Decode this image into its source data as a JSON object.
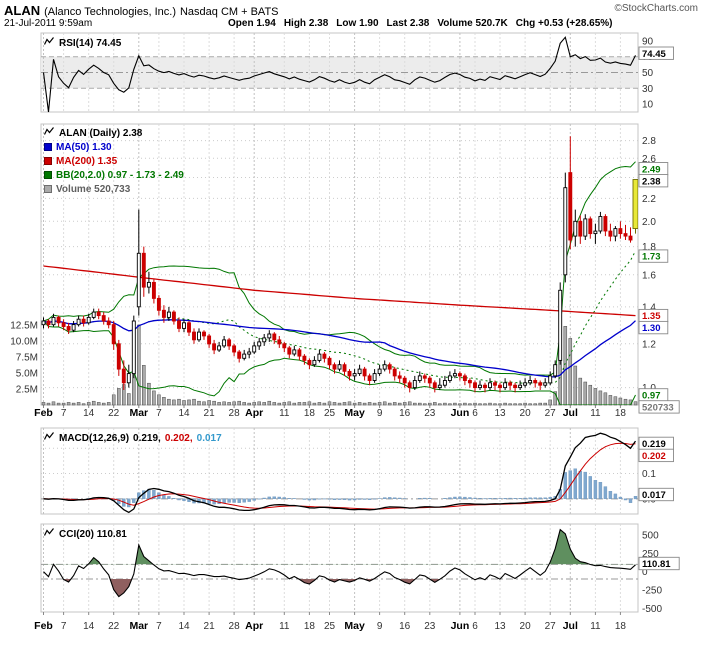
{
  "header": {
    "symbol": "ALAN",
    "name": "(Alanco Technologies, Inc.)",
    "exchange": "Nasdaq CM + BATS",
    "credit": "©StockCharts.com",
    "datetime": "21-Jul-2011 9:59am",
    "quote": {
      "open_l": "Open",
      "open_v": "1.94",
      "high_l": "High",
      "high_v": "2.38",
      "low_l": "Low",
      "low_v": "1.90",
      "last_l": "Last",
      "last_v": "2.38",
      "vol_l": "Volume",
      "vol_v": "520.7K",
      "chg_l": "Chg",
      "chg_v": "+0.53 (+28.65%)"
    }
  },
  "legends": {
    "rsi": {
      "text": "RSI(14) 74.45"
    },
    "price": {
      "title": "ALAN (Daily) 2.38",
      "ma50": "MA(50) 1.30",
      "ma200": "MA(200) 1.35",
      "bb": "BB(20,2.0) 0.97 - 1.73 - 2.49",
      "volume": "Volume 520,733"
    },
    "macd": {
      "title": "MACD(12,26,9)",
      "v1": "0.219,",
      "v2": "0.202,",
      "v3": "0.017"
    },
    "cci": {
      "text": "CCI(20) 110.81"
    }
  },
  "colors": {
    "text": "#000000",
    "up": "#000000",
    "down": "#cc0000",
    "ma50": "#0000cc",
    "ma200": "#cc0000",
    "bb": "#007700",
    "volume_text": "#606060",
    "volume_bar": "#aaaaaa",
    "hist": "#7fa8cf",
    "macd_line": "#000000",
    "signal": "#cc0000",
    "hist_text": "#3399cc",
    "cci_up_fill": "#5f8f5f",
    "cci_dn_fill": "#8f5f5f",
    "highlight": "#e8e838",
    "badge_green": "#007700",
    "badge_red": "#cc0000",
    "badge_blue": "#0000cc",
    "badge_black": "#000000",
    "badge_gray": "#777777",
    "grid": "#cccccc"
  },
  "chart_data": {
    "type": "candlestick",
    "title": "ALAN (Daily)",
    "timeframe": "Feb 2011 - 21 Jul 2011",
    "dates": [
      "2/1",
      "2/2",
      "2/3",
      "2/4",
      "2/7",
      "2/8",
      "2/9",
      "2/10",
      "2/11",
      "2/14",
      "2/15",
      "2/16",
      "2/17",
      "2/18",
      "2/22",
      "2/23",
      "2/24",
      "2/25",
      "2/28",
      "3/1",
      "3/2",
      "3/3",
      "3/4",
      "3/7",
      "3/8",
      "3/9",
      "3/10",
      "3/11",
      "3/14",
      "3/15",
      "3/16",
      "3/17",
      "3/18",
      "3/21",
      "3/22",
      "3/23",
      "3/24",
      "3/25",
      "3/28",
      "3/29",
      "3/30",
      "3/31",
      "4/1",
      "4/4",
      "4/5",
      "4/6",
      "4/7",
      "4/8",
      "4/11",
      "4/12",
      "4/13",
      "4/14",
      "4/15",
      "4/18",
      "4/19",
      "4/20",
      "4/21",
      "4/25",
      "4/26",
      "4/27",
      "4/28",
      "4/29",
      "5/2",
      "5/3",
      "5/4",
      "5/5",
      "5/6",
      "5/9",
      "5/10",
      "5/11",
      "5/12",
      "5/13",
      "5/16",
      "5/17",
      "5/18",
      "5/19",
      "5/20",
      "5/23",
      "5/24",
      "5/25",
      "5/26",
      "5/27",
      "5/31",
      "6/1",
      "6/2",
      "6/3",
      "6/6",
      "6/7",
      "6/8",
      "6/9",
      "6/10",
      "6/13",
      "6/14",
      "6/15",
      "6/16",
      "6/17",
      "6/20",
      "6/21",
      "6/22",
      "6/23",
      "6/24",
      "6/27",
      "6/28",
      "6/29",
      "6/30",
      "7/1",
      "7/5",
      "7/6",
      "7/7",
      "7/8",
      "7/11",
      "7/12",
      "7/13",
      "7/14",
      "7/15",
      "7/18",
      "7/19",
      "7/20",
      "7/21"
    ],
    "x_ticks": [
      {
        "i": 0,
        "label": "Feb",
        "month": true
      },
      {
        "i": 4,
        "label": "7"
      },
      {
        "i": 9,
        "label": "14"
      },
      {
        "i": 14,
        "label": "22"
      },
      {
        "i": 19,
        "label": "Mar",
        "month": true
      },
      {
        "i": 23,
        "label": "7"
      },
      {
        "i": 28,
        "label": "14"
      },
      {
        "i": 33,
        "label": "21"
      },
      {
        "i": 38,
        "label": "28"
      },
      {
        "i": 42,
        "label": "Apr",
        "month": true
      },
      {
        "i": 48,
        "label": "11"
      },
      {
        "i": 53,
        "label": "18"
      },
      {
        "i": 57,
        "label": "25"
      },
      {
        "i": 62,
        "label": "May",
        "month": true
      },
      {
        "i": 67,
        "label": "9"
      },
      {
        "i": 72,
        "label": "16"
      },
      {
        "i": 77,
        "label": "23"
      },
      {
        "i": 83,
        "label": "Jun",
        "month": true
      },
      {
        "i": 86,
        "label": "6"
      },
      {
        "i": 91,
        "label": "13"
      },
      {
        "i": 96,
        "label": "20"
      },
      {
        "i": 101,
        "label": "27"
      },
      {
        "i": 105,
        "label": "Jul",
        "month": true
      },
      {
        "i": 110,
        "label": "11"
      },
      {
        "i": 115,
        "label": "18"
      }
    ],
    "price": {
      "scale": "log",
      "ylim": [
        0.93,
        3.0
      ],
      "yticks": [
        1.0,
        1.2,
        1.4,
        1.6,
        1.8,
        2.0,
        2.2,
        2.4,
        2.6,
        2.8
      ],
      "badges": [
        {
          "v": 2.49,
          "label": "2.49",
          "color": "green"
        },
        {
          "v": 2.38,
          "label": "2.38",
          "color": "black"
        },
        {
          "v": 1.73,
          "label": "1.73",
          "color": "green"
        },
        {
          "v": 1.35,
          "label": "1.35",
          "color": "red"
        },
        {
          "v": 1.3,
          "label": "1.30",
          "color": "blue"
        },
        {
          "v": 0.97,
          "label": "0.97",
          "color": "green"
        }
      ],
      "volume_badge": "520733",
      "volume_ticks": [
        {
          "v": 12.5,
          "label": "12.5M"
        },
        {
          "v": 10,
          "label": "10.0M"
        },
        {
          "v": 7.5,
          "label": "7.5M"
        },
        {
          "v": 5,
          "label": "5.0M"
        },
        {
          "v": 2.5,
          "label": "2.5M"
        }
      ],
      "ma200_anchors": [
        [
          0,
          1.66
        ],
        [
          20,
          1.58
        ],
        [
          42,
          1.5
        ],
        [
          62,
          1.45
        ],
        [
          83,
          1.41
        ],
        [
          101,
          1.38
        ],
        [
          118,
          1.35
        ]
      ],
      "indicators_computed_from": "ohlcv",
      "ohlcv": [
        [
          1.3,
          1.34,
          1.28,
          1.32,
          0.4
        ],
        [
          1.32,
          1.33,
          1.28,
          1.3,
          0.3
        ],
        [
          1.3,
          1.36,
          1.29,
          1.34,
          0.5
        ],
        [
          1.34,
          1.35,
          1.29,
          1.31,
          0.3
        ],
        [
          1.31,
          1.33,
          1.27,
          1.29,
          0.3
        ],
        [
          1.29,
          1.31,
          1.25,
          1.27,
          0.4
        ],
        [
          1.27,
          1.32,
          1.26,
          1.3,
          0.3
        ],
        [
          1.3,
          1.35,
          1.29,
          1.33,
          0.4
        ],
        [
          1.33,
          1.35,
          1.29,
          1.31,
          0.2
        ],
        [
          1.31,
          1.36,
          1.3,
          1.34,
          0.4
        ],
        [
          1.34,
          1.39,
          1.33,
          1.37,
          0.6
        ],
        [
          1.37,
          1.39,
          1.33,
          1.35,
          0.4
        ],
        [
          1.35,
          1.37,
          1.3,
          1.32,
          0.3
        ],
        [
          1.32,
          1.34,
          1.28,
          1.3,
          0.4
        ],
        [
          1.3,
          1.32,
          1.17,
          1.2,
          1.6
        ],
        [
          1.2,
          1.22,
          1.05,
          1.08,
          2.6
        ],
        [
          1.08,
          1.12,
          0.99,
          1.02,
          3.2
        ],
        [
          1.02,
          1.1,
          1.0,
          1.06,
          1.8
        ],
        [
          1.06,
          1.35,
          1.04,
          1.32,
          7.8
        ],
        [
          1.4,
          2.1,
          1.35,
          1.75,
          12.5
        ],
        [
          1.75,
          1.8,
          1.46,
          1.52,
          6.2
        ],
        [
          1.52,
          1.62,
          1.48,
          1.55,
          3.4
        ],
        [
          1.55,
          1.57,
          1.42,
          1.45,
          2.2
        ],
        [
          1.45,
          1.47,
          1.35,
          1.38,
          1.6
        ],
        [
          1.38,
          1.41,
          1.31,
          1.34,
          1.2
        ],
        [
          1.34,
          1.4,
          1.32,
          1.37,
          0.9
        ],
        [
          1.37,
          1.38,
          1.3,
          1.32,
          0.8
        ],
        [
          1.32,
          1.34,
          1.26,
          1.28,
          0.9
        ],
        [
          1.28,
          1.33,
          1.26,
          1.31,
          0.7
        ],
        [
          1.31,
          1.32,
          1.24,
          1.26,
          0.8
        ],
        [
          1.26,
          1.28,
          1.2,
          1.22,
          0.9
        ],
        [
          1.22,
          1.28,
          1.21,
          1.26,
          0.6
        ],
        [
          1.26,
          1.27,
          1.22,
          1.24,
          0.5
        ],
        [
          1.24,
          1.25,
          1.18,
          1.2,
          0.7
        ],
        [
          1.2,
          1.22,
          1.15,
          1.17,
          0.6
        ],
        [
          1.17,
          1.21,
          1.16,
          1.19,
          0.4
        ],
        [
          1.19,
          1.24,
          1.18,
          1.22,
          0.5
        ],
        [
          1.22,
          1.23,
          1.17,
          1.19,
          0.4
        ],
        [
          1.19,
          1.2,
          1.14,
          1.16,
          0.5
        ],
        [
          1.16,
          1.17,
          1.11,
          1.13,
          0.6
        ],
        [
          1.13,
          1.17,
          1.12,
          1.15,
          0.4
        ],
        [
          1.15,
          1.18,
          1.13,
          1.16,
          0.3
        ],
        [
          1.16,
          1.21,
          1.15,
          1.19,
          0.4
        ],
        [
          1.19,
          1.23,
          1.17,
          1.21,
          0.5
        ],
        [
          1.21,
          1.25,
          1.19,
          1.23,
          0.4
        ],
        [
          1.23,
          1.27,
          1.21,
          1.25,
          0.6
        ],
        [
          1.25,
          1.26,
          1.2,
          1.22,
          0.4
        ],
        [
          1.22,
          1.24,
          1.18,
          1.2,
          0.3
        ],
        [
          1.2,
          1.21,
          1.16,
          1.18,
          0.4
        ],
        [
          1.18,
          1.19,
          1.13,
          1.15,
          0.5
        ],
        [
          1.15,
          1.19,
          1.14,
          1.17,
          0.3
        ],
        [
          1.17,
          1.18,
          1.12,
          1.14,
          0.4
        ],
        [
          1.14,
          1.15,
          1.1,
          1.12,
          0.4
        ],
        [
          1.12,
          1.13,
          1.08,
          1.1,
          0.5
        ],
        [
          1.1,
          1.14,
          1.09,
          1.12,
          0.3
        ],
        [
          1.12,
          1.17,
          1.11,
          1.15,
          0.4
        ],
        [
          1.15,
          1.16,
          1.11,
          1.13,
          0.3
        ],
        [
          1.13,
          1.14,
          1.08,
          1.1,
          0.5
        ],
        [
          1.1,
          1.11,
          1.06,
          1.08,
          0.4
        ],
        [
          1.08,
          1.12,
          1.07,
          1.1,
          0.3
        ],
        [
          1.1,
          1.11,
          1.05,
          1.07,
          0.4
        ],
        [
          1.07,
          1.08,
          1.03,
          1.05,
          0.5
        ],
        [
          1.05,
          1.08,
          1.03,
          1.06,
          0.3
        ],
        [
          1.06,
          1.1,
          1.05,
          1.08,
          0.4
        ],
        [
          1.08,
          1.09,
          1.03,
          1.05,
          0.3
        ],
        [
          1.05,
          1.06,
          1.01,
          1.03,
          0.4
        ],
        [
          1.03,
          1.08,
          1.02,
          1.06,
          0.3
        ],
        [
          1.06,
          1.1,
          1.05,
          1.08,
          0.4
        ],
        [
          1.08,
          1.12,
          1.07,
          1.1,
          0.5
        ],
        [
          1.1,
          1.11,
          1.06,
          1.08,
          0.3
        ],
        [
          1.08,
          1.09,
          1.03,
          1.05,
          0.4
        ],
        [
          1.05,
          1.07,
          1.02,
          1.04,
          0.3
        ],
        [
          1.04,
          1.05,
          1.0,
          1.02,
          0.4
        ],
        [
          1.02,
          1.03,
          0.98,
          1.0,
          0.5
        ],
        [
          1.0,
          1.05,
          0.99,
          1.03,
          0.3
        ],
        [
          1.03,
          1.07,
          1.02,
          1.05,
          0.3
        ],
        [
          1.05,
          1.06,
          1.02,
          1.04,
          0.2
        ],
        [
          1.04,
          1.05,
          1.0,
          1.02,
          0.3
        ],
        [
          1.02,
          1.03,
          0.98,
          1.0,
          0.4
        ],
        [
          1.0,
          1.04,
          0.99,
          1.01,
          0.2
        ],
        [
          1.01,
          1.05,
          1.0,
          1.03,
          0.3
        ],
        [
          1.03,
          1.07,
          1.02,
          1.05,
          0.2
        ],
        [
          1.05,
          1.08,
          1.04,
          1.06,
          0.3
        ],
        [
          1.06,
          1.07,
          1.03,
          1.05,
          0.2
        ],
        [
          1.05,
          1.06,
          1.01,
          1.03,
          0.3
        ],
        [
          1.03,
          1.04,
          1.0,
          1.02,
          0.2
        ],
        [
          1.02,
          1.03,
          0.98,
          1.0,
          0.3
        ],
        [
          1.0,
          1.03,
          0.99,
          1.01,
          0.2
        ],
        [
          1.01,
          1.02,
          0.98,
          1.0,
          0.2
        ],
        [
          1.0,
          1.04,
          0.99,
          1.02,
          0.3
        ],
        [
          1.02,
          1.03,
          0.99,
          1.01,
          0.2
        ],
        [
          1.01,
          1.02,
          0.98,
          1.0,
          0.2
        ],
        [
          1.0,
          1.04,
          0.99,
          1.02,
          0.3
        ],
        [
          1.02,
          1.03,
          0.99,
          1.01,
          0.2
        ],
        [
          1.01,
          1.02,
          0.98,
          1.0,
          0.2
        ],
        [
          1.0,
          1.03,
          0.99,
          1.01,
          0.2
        ],
        [
          1.01,
          1.04,
          1.0,
          1.02,
          0.3
        ],
        [
          1.02,
          1.05,
          1.01,
          1.03,
          0.2
        ],
        [
          1.03,
          1.04,
          1.0,
          1.02,
          0.2
        ],
        [
          1.02,
          1.03,
          0.99,
          1.01,
          0.3
        ],
        [
          1.01,
          1.04,
          1.0,
          1.02,
          0.3
        ],
        [
          1.02,
          1.07,
          1.01,
          1.05,
          0.8
        ],
        [
          1.05,
          1.12,
          1.04,
          1.1,
          2.1
        ],
        [
          1.12,
          1.55,
          1.1,
          1.5,
          9.2
        ],
        [
          1.6,
          2.45,
          1.55,
          2.3,
          12.3
        ],
        [
          2.45,
          2.85,
          1.78,
          1.85,
          10.4
        ],
        [
          1.88,
          2.1,
          1.8,
          2.0,
          6.1
        ],
        [
          2.0,
          2.05,
          1.82,
          1.88,
          4.2
        ],
        [
          1.88,
          2.06,
          1.85,
          2.02,
          3.6
        ],
        [
          2.02,
          2.04,
          1.86,
          1.9,
          3.1
        ],
        [
          1.9,
          1.98,
          1.82,
          1.92,
          2.6
        ],
        [
          1.92,
          2.08,
          1.9,
          2.04,
          2.2
        ],
        [
          2.04,
          2.06,
          1.88,
          1.92,
          1.9
        ],
        [
          1.92,
          1.98,
          1.84,
          1.88,
          1.5
        ],
        [
          1.88,
          1.96,
          1.84,
          1.94,
          1.3
        ],
        [
          1.94,
          2.0,
          1.86,
          1.9,
          1.1
        ],
        [
          1.9,
          1.97,
          1.85,
          1.88,
          0.9
        ],
        [
          1.88,
          1.95,
          1.83,
          1.85,
          0.8
        ],
        [
          1.94,
          2.38,
          1.9,
          2.38,
          0.52
        ]
      ]
    },
    "rsi": {
      "period": 14,
      "last": 74.45,
      "levels": [
        90,
        70,
        50,
        30,
        10
      ],
      "band": [
        30,
        70
      ],
      "badge": {
        "label": "74.45",
        "color": "black"
      }
    },
    "macd": {
      "params": [
        12,
        26,
        9
      ],
      "last_macd": 0.219,
      "last_signal": 0.202,
      "last_hist": 0.017,
      "ylim": [
        -0.06,
        0.28
      ],
      "yticks": [
        {
          "v": 0.1,
          "label": "0.1"
        },
        {
          "v": 0.0,
          "label": "0.0"
        }
      ],
      "badges": [
        {
          "v": 0.219,
          "label": "0.219",
          "color": "black"
        },
        {
          "v": 0.202,
          "label": "0.202",
          "color": "red"
        },
        {
          "v": 0.017,
          "label": "0.017",
          "color": "lightblue"
        }
      ]
    },
    "cci": {
      "period": 20,
      "last": 110.81,
      "ylim": [
        -550,
        650
      ],
      "yticks": [
        {
          "v": 500,
          "label": "500"
        },
        {
          "v": 250,
          "label": "250"
        },
        {
          "v": 0,
          "label": "0"
        },
        {
          "v": -250,
          "label": "-250"
        },
        {
          "v": -500,
          "label": "-500"
        }
      ],
      "levels": [
        100,
        -100
      ],
      "badge": {
        "v": 110.81,
        "label": "110.81",
        "color": "black"
      }
    }
  }
}
